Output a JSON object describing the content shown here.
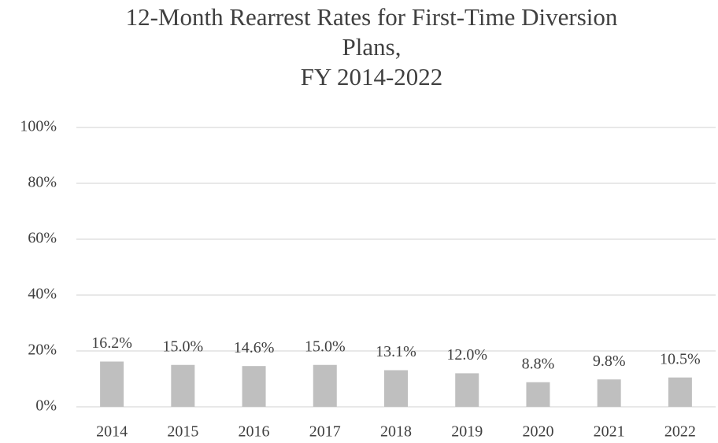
{
  "chart_data": {
    "type": "bar",
    "title": [
      "12-Month Rearrest Rates for First-Time Diversion",
      "Plans,",
      "FY 2014-2022"
    ],
    "categories": [
      "2014",
      "2015",
      "2016",
      "2017",
      "2018",
      "2019",
      "2020",
      "2021",
      "2022"
    ],
    "values": [
      16.2,
      15.0,
      14.6,
      15.0,
      13.1,
      12.0,
      8.8,
      9.8,
      10.5
    ],
    "value_labels": [
      "16.2%",
      "15.0%",
      "14.6%",
      "15.0%",
      "13.1%",
      "12.0%",
      "8.8%",
      "9.8%",
      "10.5%"
    ],
    "color": "#bfbfbf",
    "ylim": [
      0,
      100
    ],
    "yticks": [
      {
        "value": 0,
        "label": "0%"
      },
      {
        "value": 20,
        "label": "20%"
      },
      {
        "value": 40,
        "label": "40%"
      },
      {
        "value": 60,
        "label": "60%"
      },
      {
        "value": 80,
        "label": "80%"
      },
      {
        "value": 100,
        "label": "100%"
      }
    ],
    "grid": true
  }
}
